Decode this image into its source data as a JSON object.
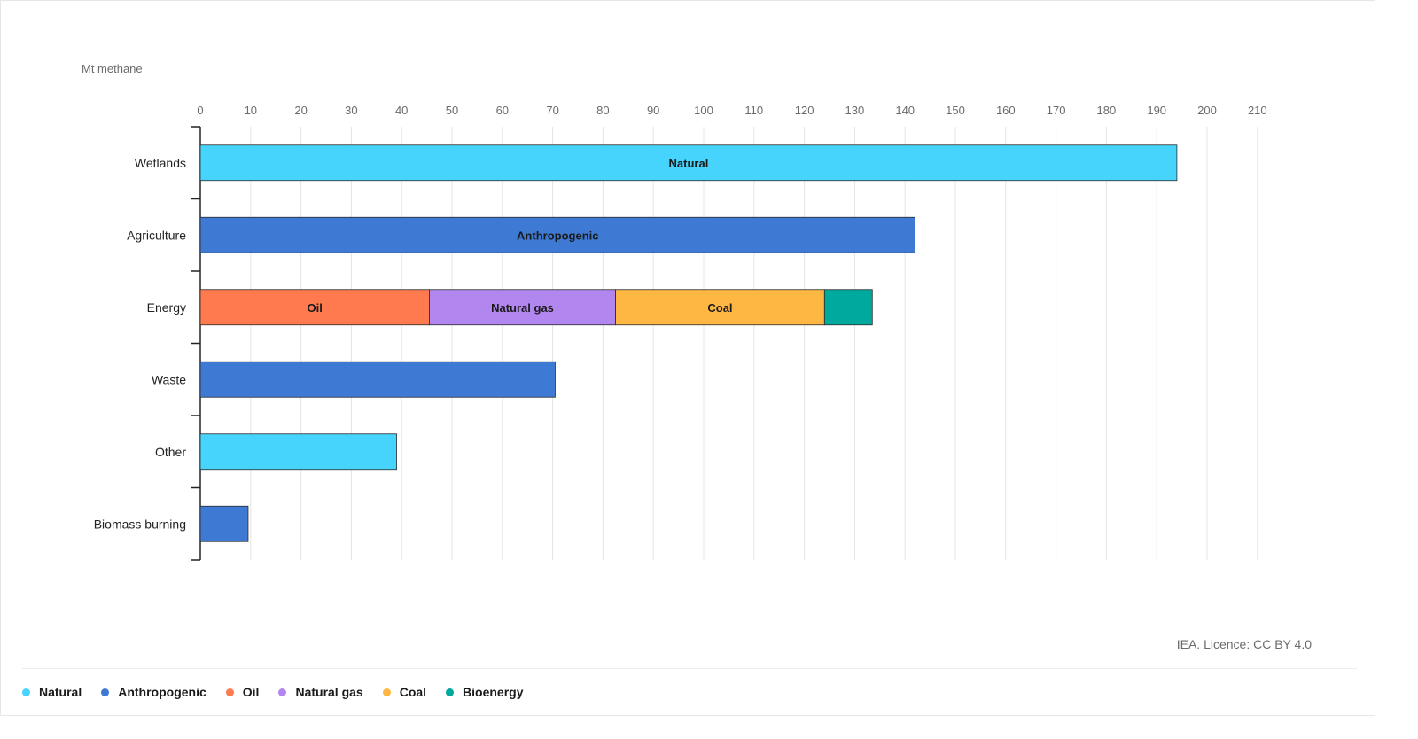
{
  "chart_data": {
    "type": "bar",
    "orientation": "horizontal",
    "stacked": true,
    "unit_label": "Mt methane",
    "xlim": [
      0,
      210
    ],
    "x_ticks": [
      0,
      10,
      20,
      30,
      40,
      50,
      60,
      70,
      80,
      90,
      100,
      110,
      120,
      130,
      140,
      150,
      160,
      170,
      180,
      190,
      200,
      210
    ],
    "grid": true,
    "legend_position": "bottom-left",
    "categories": [
      "Wetlands",
      "Agriculture",
      "Energy",
      "Waste",
      "Other",
      "Biomass burning"
    ],
    "series": [
      {
        "name": "Natural",
        "color": "#47d4fc",
        "values": [
          194,
          0,
          0,
          0,
          39,
          0
        ]
      },
      {
        "name": "Anthropogenic",
        "color": "#3e7ad3",
        "values": [
          0,
          142,
          0,
          70.5,
          0,
          9.5
        ]
      },
      {
        "name": "Oil",
        "color": "#ff7a4e",
        "values": [
          0,
          0,
          45.5,
          0,
          0,
          0
        ]
      },
      {
        "name": "Natural gas",
        "color": "#b187ef",
        "values": [
          0,
          0,
          37,
          0,
          0,
          0
        ]
      },
      {
        "name": "Coal",
        "color": "#ffb743",
        "values": [
          0,
          0,
          41.5,
          0,
          0,
          0
        ]
      },
      {
        "name": "Bioenergy",
        "color": "#00a99d",
        "values": [
          0,
          0,
          9.5,
          0,
          0,
          0
        ]
      }
    ],
    "bar_labels": [
      {
        "category": "Wetlands",
        "series": "Natural",
        "text": "Natural"
      },
      {
        "category": "Agriculture",
        "series": "Anthropogenic",
        "text": "Anthropogenic"
      },
      {
        "category": "Energy",
        "series": "Oil",
        "text": "Oil"
      },
      {
        "category": "Energy",
        "series": "Natural gas",
        "text": "Natural gas"
      },
      {
        "category": "Energy",
        "series": "Coal",
        "text": "Coal"
      }
    ]
  },
  "footer": {
    "credit": "IEA. Licence: CC BY 4.0"
  },
  "legend": [
    {
      "label": "Natural",
      "color": "#47d4fc"
    },
    {
      "label": "Anthropogenic",
      "color": "#3e7ad3"
    },
    {
      "label": "Oil",
      "color": "#ff7a4e"
    },
    {
      "label": "Natural gas",
      "color": "#b187ef"
    },
    {
      "label": "Coal",
      "color": "#ffb743"
    },
    {
      "label": "Bioenergy",
      "color": "#00a99d"
    }
  ]
}
